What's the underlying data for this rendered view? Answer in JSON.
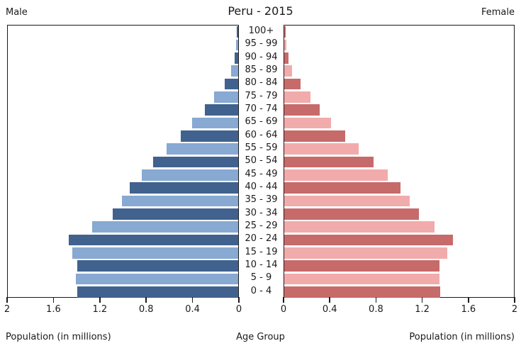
{
  "header": {
    "male_label": "Male",
    "title": "Peru - 2015",
    "female_label": "Female"
  },
  "footer": {
    "left_axis_title": "Population (in millions)",
    "center_axis_title": "Age Group",
    "right_axis_title": "Population (in millions)"
  },
  "chart_data": {
    "type": "bar",
    "subtype": "population_pyramid",
    "title": "Peru - 2015",
    "categories_top_to_bottom": [
      "100+",
      "95 - 99",
      "90 - 94",
      "85 - 89",
      "80 - 84",
      "75 - 79",
      "70 - 74",
      "65 - 69",
      "60 - 64",
      "55 - 59",
      "50 - 54",
      "45 - 49",
      "40 - 44",
      "35 - 39",
      "30 - 34",
      "25 - 29",
      "20 - 24",
      "15 - 19",
      "10 - 14",
      "5 - 9",
      "0 - 4"
    ],
    "series": [
      {
        "name": "Male",
        "side": "left",
        "values_millions": [
          0.01,
          0.02,
          0.03,
          0.06,
          0.12,
          0.21,
          0.29,
          0.4,
          0.5,
          0.62,
          0.74,
          0.84,
          0.94,
          1.01,
          1.09,
          1.27,
          1.47,
          1.44,
          1.4,
          1.41,
          1.4
        ]
      },
      {
        "name": "Female",
        "side": "right",
        "values_millions": [
          0.01,
          0.02,
          0.04,
          0.07,
          0.14,
          0.23,
          0.31,
          0.41,
          0.53,
          0.65,
          0.78,
          0.9,
          1.01,
          1.09,
          1.17,
          1.31,
          1.47,
          1.42,
          1.35,
          1.35,
          1.36
        ]
      }
    ],
    "xlabel": "Population (in millions)",
    "center_label": "Age Group",
    "xlim": [
      0,
      2
    ],
    "x_tick_values": [
      0,
      0.4,
      0.8,
      1.2,
      1.6,
      2
    ],
    "x_tick_labels": [
      "0",
      "0.4",
      "0.8",
      "1.2",
      "1.6",
      "2"
    ],
    "grid": false,
    "legend": "none",
    "colors": {
      "male_dark": "#41628e",
      "male_light": "#87a9d2",
      "female_dark": "#c76a6a",
      "female_light": "#f2abab",
      "axis": "#1a1a1a",
      "background": "#ffffff"
    }
  }
}
